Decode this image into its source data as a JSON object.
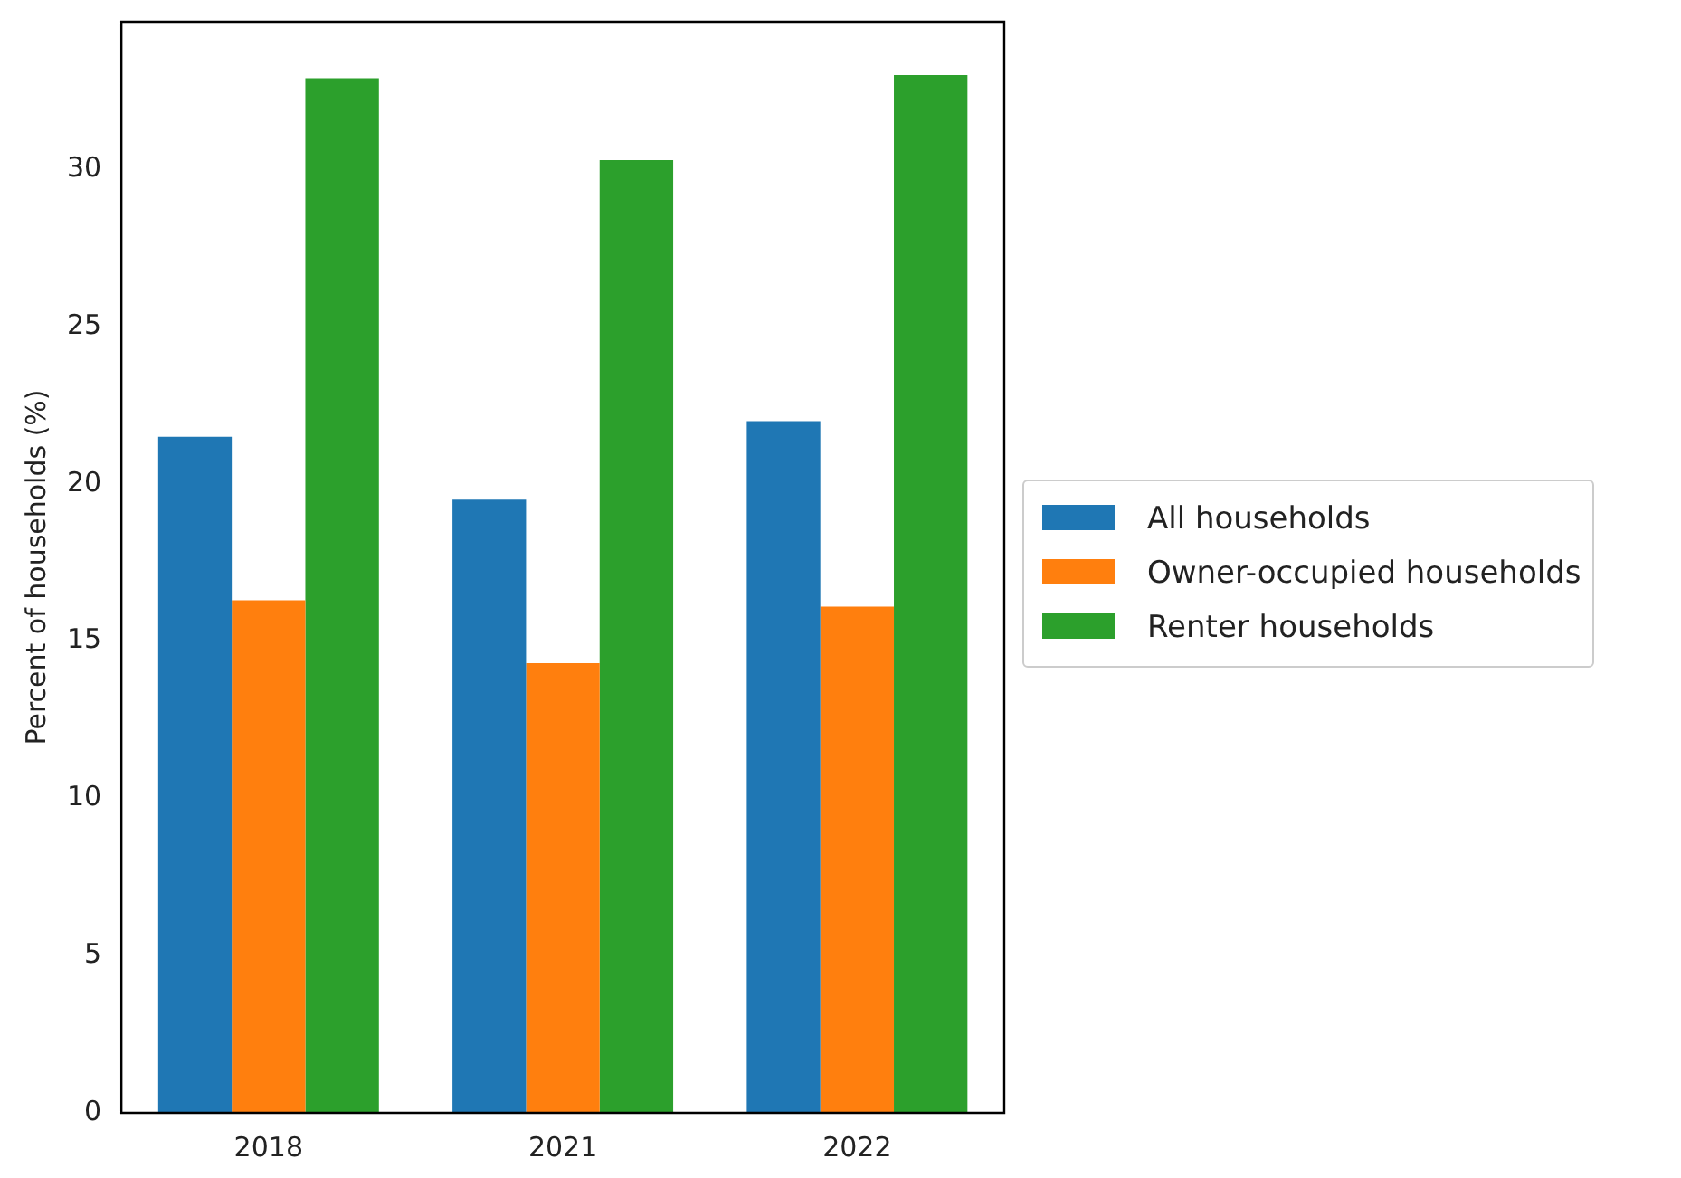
{
  "chart_data": {
    "type": "bar",
    "ylabel": "Percent of households (%)",
    "categories": [
      "2018",
      "2021",
      "2022"
    ],
    "series": [
      {
        "name": "All households",
        "color": "#1f77b4",
        "values": [
          21.5,
          19.5,
          22.0
        ]
      },
      {
        "name": "Owner-occupied households",
        "color": "#ff7f0e",
        "values": [
          16.3,
          14.3,
          16.1
        ]
      },
      {
        "name": "Renter households",
        "color": "#2ca02c",
        "values": [
          32.9,
          30.3,
          33.0
        ]
      }
    ],
    "ylim": [
      0,
      34.7
    ],
    "yticks": [
      0,
      5,
      10,
      15,
      20,
      25,
      30
    ],
    "grid": false,
    "legend": "right"
  }
}
